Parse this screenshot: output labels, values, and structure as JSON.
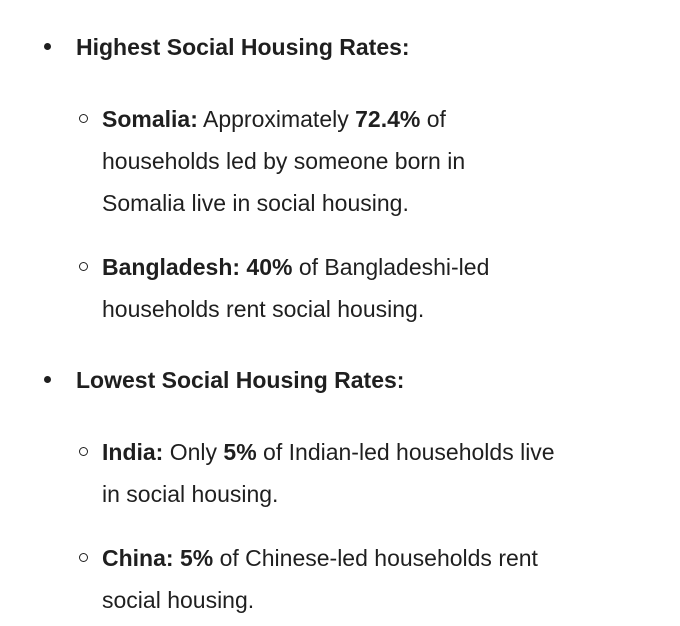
{
  "page": {
    "background_color": "#ffffff",
    "text_color": "#1f1f1f"
  },
  "list": {
    "items": [
      {
        "heading": "Highest Social Housing Rates:",
        "sub_items": [
          {
            "lines": [
              [
                {
                  "bold": true,
                  "text": "Somalia:"
                },
                {
                  "bold": false,
                  "text": " Approximately "
                },
                {
                  "bold": true,
                  "text": "72.4%"
                },
                {
                  "bold": false,
                  "text": " of"
                }
              ],
              [
                {
                  "bold": false,
                  "text": "households led by someone born in"
                }
              ],
              [
                {
                  "bold": false,
                  "text": "Somalia live in social housing."
                }
              ]
            ]
          },
          {
            "lines": [
              [
                {
                  "bold": true,
                  "text": "Bangladesh: 40%"
                },
                {
                  "bold": false,
                  "text": " of Bangladeshi-led"
                }
              ],
              [
                {
                  "bold": false,
                  "text": "households rent social housing."
                }
              ]
            ]
          }
        ]
      },
      {
        "heading": "Lowest Social Housing Rates:",
        "sub_items": [
          {
            "lines": [
              [
                {
                  "bold": true,
                  "text": "India:"
                },
                {
                  "bold": false,
                  "text": " Only "
                },
                {
                  "bold": true,
                  "text": "5%"
                },
                {
                  "bold": false,
                  "text": " of Indian-led households live"
                }
              ],
              [
                {
                  "bold": false,
                  "text": "in social housing."
                }
              ]
            ]
          },
          {
            "lines": [
              [
                {
                  "bold": true,
                  "text": "China: 5%"
                },
                {
                  "bold": false,
                  "text": " of Chinese-led households rent"
                }
              ],
              [
                {
                  "bold": false,
                  "text": "social housing."
                }
              ]
            ]
          }
        ]
      }
    ]
  }
}
